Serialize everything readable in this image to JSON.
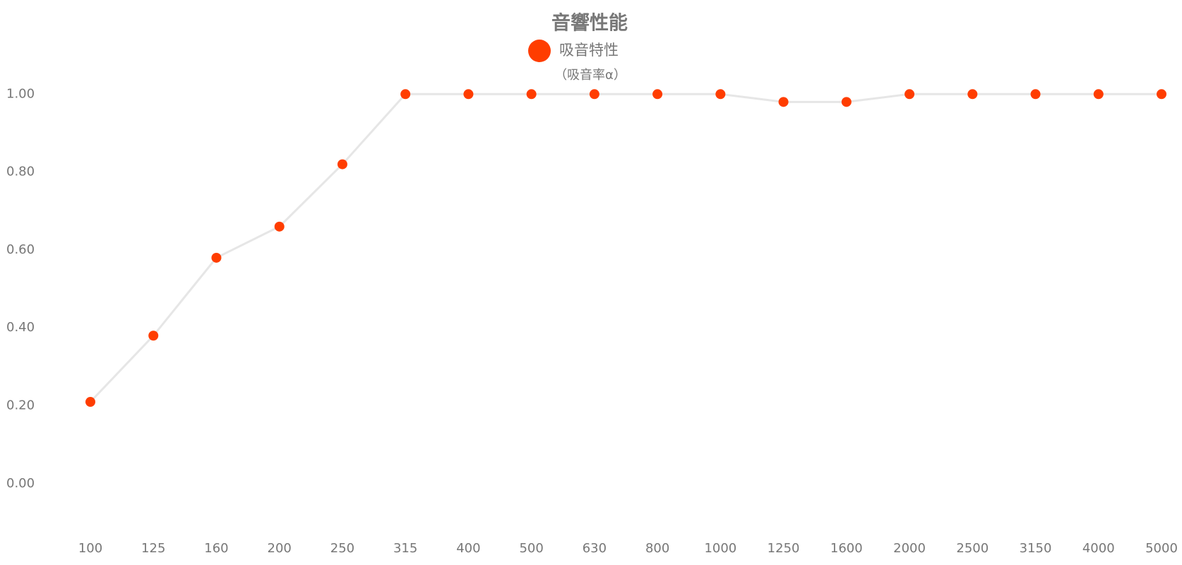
{
  "chart_data": {
    "type": "line",
    "title": "音響性能",
    "subtitle": "（吸音率α）",
    "categories": [
      "100",
      "125",
      "160",
      "200",
      "250",
      "315",
      "400",
      "500",
      "630",
      "800",
      "1000",
      "1250",
      "1600",
      "2000",
      "2500",
      "3150",
      "4000",
      "5000"
    ],
    "series": [
      {
        "name": "吸音特性",
        "color": "#ff3d00",
        "line_color": "#e6e6e6",
        "values": [
          0.21,
          0.38,
          0.58,
          0.66,
          0.82,
          1,
          1,
          1,
          1,
          1,
          1,
          0.98,
          0.98,
          1,
          1,
          1,
          1,
          1
        ]
      }
    ],
    "ylim": [
      -0.1,
      1.2
    ],
    "yticks": [
      {
        "value": 0,
        "label": "0.00"
      },
      {
        "value": 0.2,
        "label": "0.20"
      },
      {
        "value": 0.4,
        "label": "0.40"
      },
      {
        "value": 0.6,
        "label": "0.60"
      },
      {
        "value": 0.8,
        "label": "0.80"
      },
      {
        "value": 1,
        "label": "1.00"
      }
    ],
    "grid": false
  }
}
